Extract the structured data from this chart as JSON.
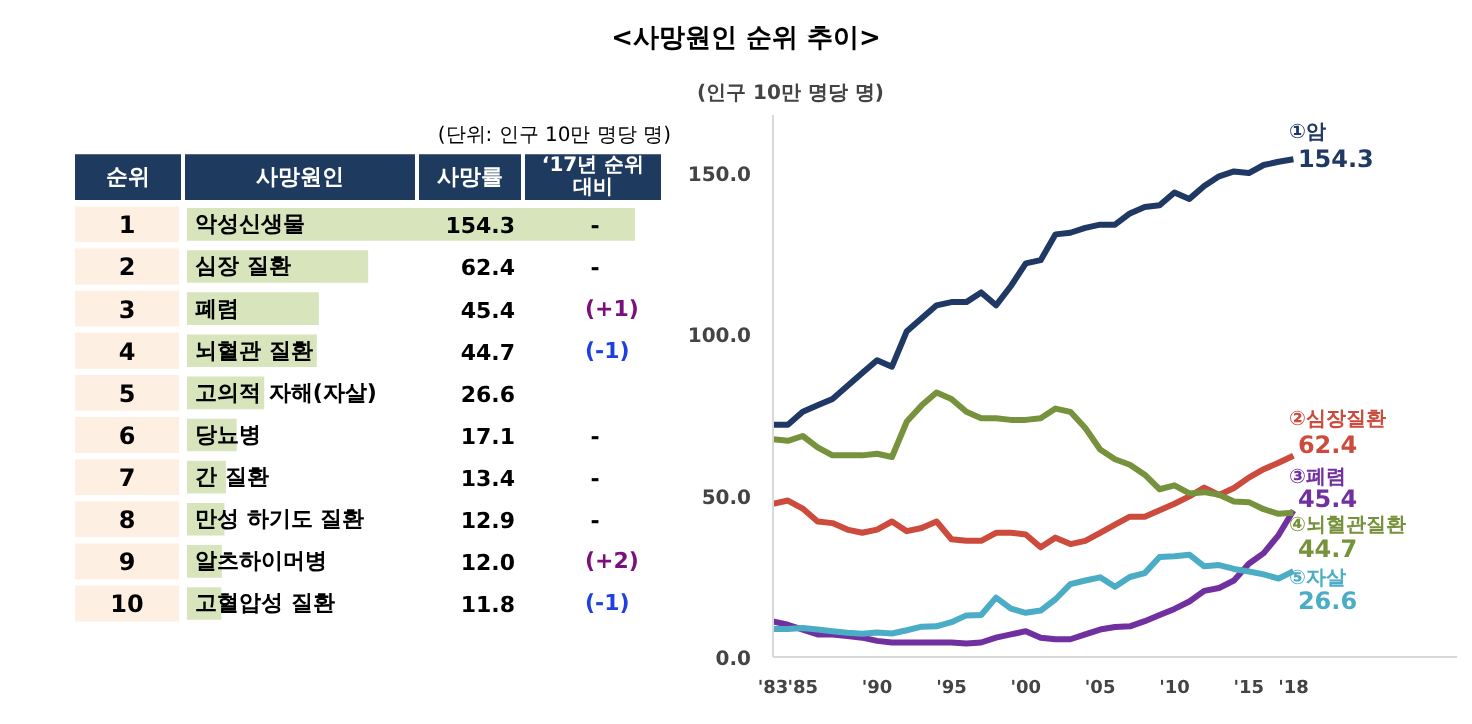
{
  "chart_data": [
    {
      "type": "bar",
      "orientation": "horizontal",
      "title": "<사망원인 순위 추이>",
      "categories": [
        "악성신생물",
        "심장 질환",
        "폐렴",
        "뇌혈관 질환",
        "고의적 자해(자살)",
        "당뇨병",
        "간 질환",
        "만성 하기도 질환",
        "알츠하이머병",
        "고혈압성 질환"
      ],
      "values": [
        154.3,
        62.4,
        45.4,
        44.7,
        26.6,
        17.1,
        13.4,
        12.9,
        12.0,
        11.8
      ],
      "color": "#d8e4bc",
      "value_labels": [
        "154.3",
        "62.4",
        "45.4",
        "44.7",
        "26.6",
        "17.1",
        "13.4",
        "12.9",
        "12.0",
        "11.8"
      ],
      "annotations": [
        "(단위: 인구 10만 명당 명)",
        "순위",
        "사망원인",
        "사망률",
        "‘17년 순위\n대비",
        "1",
        "2",
        "3",
        "4",
        "5",
        "6",
        "7",
        "8",
        "9",
        "10",
        "-\n-\n(+1)\n(-1)\n\n-\n-\n-\n(+2)\n(-1)"
      ]
    },
    {
      "type": "line",
      "ylabel": "(인구 10만 명당 명)",
      "x": [
        1983,
        1984,
        1985,
        1986,
        1987,
        1988,
        1989,
        1990,
        1991,
        1992,
        1993,
        1994,
        1995,
        1996,
        1997,
        1998,
        1999,
        2000,
        2001,
        2002,
        2003,
        2004,
        2005,
        2006,
        2007,
        2008,
        2009,
        2010,
        2011,
        2012,
        2013,
        2014,
        2015,
        2016,
        2017,
        2018
      ],
      "xlim": [
        1983,
        2029
      ],
      "ylim": [
        0,
        168
      ],
      "xticks": [
        {
          "value": 1983,
          "label": "'83"
        },
        {
          "value": 1985,
          "label": "'85"
        },
        {
          "value": 1990,
          "label": "'90"
        },
        {
          "value": 1995,
          "label": "'95"
        },
        {
          "value": 2000,
          "label": "'00"
        },
        {
          "value": 2005,
          "label": "'05"
        },
        {
          "value": 2010,
          "label": "'10"
        },
        {
          "value": 2015,
          "label": "'15"
        },
        {
          "value": 2018,
          "label": "'18"
        }
      ],
      "yticks": [
        {
          "value": 0,
          "label": "0.0"
        },
        {
          "value": 50,
          "label": "50.0"
        },
        {
          "value": 100,
          "label": "100.0"
        },
        {
          "value": 150,
          "label": "150.0"
        }
      ],
      "grid": false,
      "marker": "none",
      "line_style": "solid",
      "series": [
        {
          "name": "①암",
          "color": "#1f3864",
          "values": [
            72,
            72,
            76,
            78,
            80,
            84,
            88,
            92,
            90,
            101,
            105,
            109,
            110,
            110,
            113,
            109,
            115,
            122,
            123,
            131,
            131.5,
            133,
            134,
            134,
            137.5,
            139.5,
            140,
            144,
            142,
            146,
            149,
            150.5,
            150,
            152.5,
            153.5,
            154.3
          ],
          "value_labels": [
            null,
            null,
            null,
            null,
            null,
            null,
            null,
            null,
            null,
            null,
            null,
            null,
            null,
            null,
            null,
            null,
            null,
            null,
            null,
            null,
            null,
            null,
            null,
            null,
            null,
            null,
            null,
            null,
            null,
            null,
            null,
            null,
            null,
            null,
            null,
            "154.3"
          ]
        },
        {
          "name": "②심장질환",
          "color": "#cc4b3c",
          "values": [
            47.5,
            48.5,
            46,
            42,
            41.5,
            39.5,
            38.5,
            39.5,
            42,
            39,
            40,
            42,
            36.5,
            36,
            36,
            38.5,
            38.5,
            38,
            34,
            37,
            35,
            36,
            38.5,
            41,
            43.5,
            43.5,
            45.5,
            47.5,
            49.8,
            52.5,
            50.2,
            52.4,
            55.6,
            58.2,
            60.2,
            62.4
          ],
          "value_labels": [
            null,
            null,
            null,
            null,
            null,
            null,
            null,
            null,
            null,
            null,
            null,
            null,
            null,
            null,
            null,
            null,
            null,
            null,
            null,
            null,
            null,
            null,
            null,
            null,
            null,
            null,
            null,
            null,
            null,
            null,
            null,
            null,
            null,
            null,
            null,
            "62.4"
          ]
        },
        {
          "name": "③폐렴",
          "color": "#7030a0",
          "values": [
            11,
            10,
            8.5,
            7,
            7,
            6.5,
            6,
            5,
            4.5,
            4.5,
            4.5,
            4.5,
            4.5,
            4.2,
            4.5,
            6,
            7,
            8,
            6,
            5.5,
            5.5,
            7,
            8.5,
            9.3,
            9.5,
            11.1,
            13,
            14.9,
            17.2,
            20.5,
            21.4,
            23.7,
            28.9,
            32.2,
            37.8,
            45.4
          ],
          "value_labels": [
            null,
            null,
            null,
            null,
            null,
            null,
            null,
            null,
            null,
            null,
            null,
            null,
            null,
            null,
            null,
            null,
            null,
            null,
            null,
            null,
            null,
            null,
            null,
            null,
            null,
            null,
            null,
            null,
            null,
            null,
            null,
            null,
            null,
            null,
            null,
            "45.4"
          ]
        },
        {
          "name": "④뇌혈관질환",
          "color": "#76923c",
          "values": [
            67.5,
            67,
            68.5,
            65,
            62.5,
            62.5,
            62.5,
            63,
            62,
            73,
            78,
            82,
            80,
            76,
            74,
            74,
            73.5,
            73.5,
            74,
            77,
            76,
            71,
            64.3,
            61.3,
            59.6,
            56.5,
            52,
            53.2,
            50.7,
            51.1,
            50.3,
            48.2,
            48,
            45.8,
            44.4,
            44.7
          ],
          "value_labels": [
            null,
            null,
            null,
            null,
            null,
            null,
            null,
            null,
            null,
            null,
            null,
            null,
            null,
            null,
            null,
            null,
            null,
            null,
            null,
            null,
            null,
            null,
            null,
            null,
            null,
            null,
            null,
            null,
            null,
            null,
            null,
            null,
            null,
            null,
            null,
            "44.7"
          ]
        },
        {
          "name": "⑤자살",
          "color": "#4bacc6",
          "values": [
            8.7,
            8.7,
            9,
            8.5,
            8,
            7.5,
            7.2,
            7.6,
            7.3,
            8.3,
            9.4,
            9.5,
            10.8,
            12.9,
            13,
            18.4,
            15,
            13.7,
            14.4,
            17.9,
            22.6,
            23.7,
            24.7,
            21.8,
            24.8,
            26,
            31,
            31.2,
            31.7,
            28.1,
            28.5,
            27.3,
            26.5,
            25.6,
            24.3,
            26.6
          ],
          "value_labels": [
            null,
            null,
            null,
            null,
            null,
            null,
            null,
            null,
            null,
            null,
            null,
            null,
            null,
            null,
            null,
            null,
            null,
            null,
            null,
            null,
            null,
            null,
            null,
            null,
            null,
            null,
            null,
            null,
            null,
            null,
            null,
            null,
            null,
            null,
            null,
            "26.6"
          ]
        }
      ]
    }
  ]
}
